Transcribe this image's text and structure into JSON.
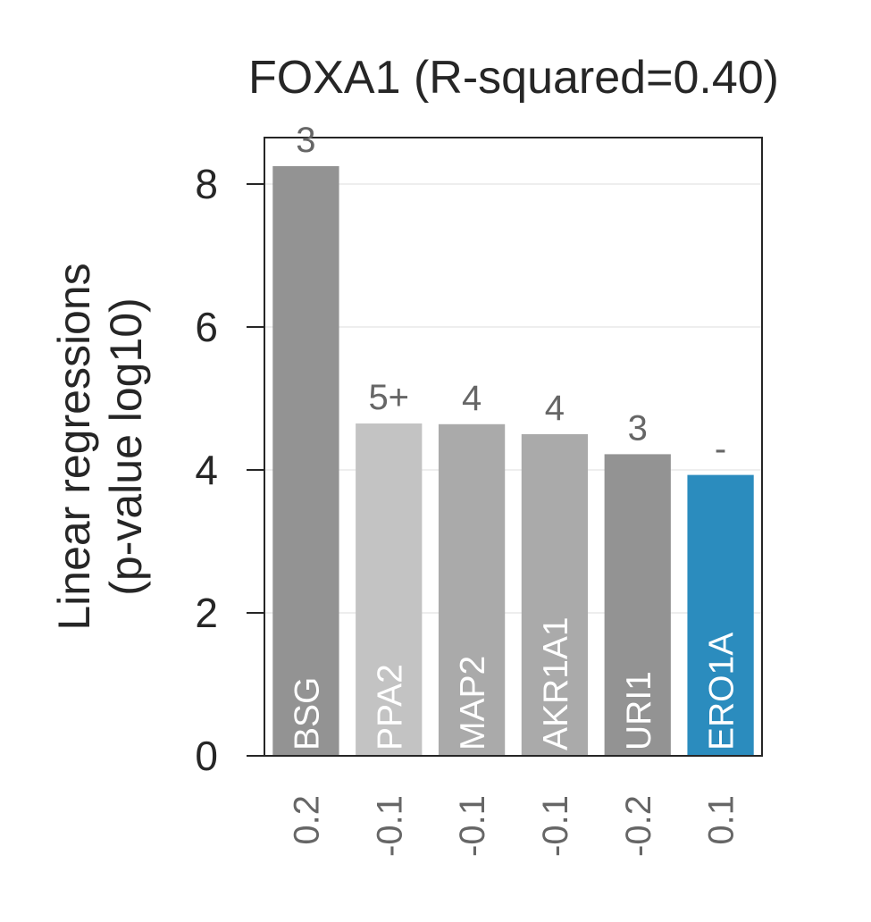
{
  "chart_data": {
    "type": "bar",
    "title": "FOXA1 (R-squared=0.40)",
    "ylabel_line1": "Linear regressions",
    "ylabel_line2": "(p-value log10)",
    "xlabel": "",
    "ylim": [
      0,
      8.65
    ],
    "yticks": [
      0,
      2,
      4,
      6,
      8
    ],
    "grid": true,
    "categories": [
      "BSG",
      "PPA2",
      "MAP2",
      "AKR1A1",
      "URI1",
      "ERO1A"
    ],
    "values": [
      8.25,
      4.65,
      4.64,
      4.5,
      4.22,
      3.93
    ],
    "top_labels": [
      "3",
      "5+",
      "4",
      "4",
      "3",
      "-"
    ],
    "bottom_labels": [
      "0.2",
      "-0.1",
      "-0.1",
      "-0.1",
      "-0.2",
      "0.1"
    ],
    "colors": [
      "#939393",
      "#c3c3c3",
      "#aaaaaa",
      "#aaaaaa",
      "#939393",
      "#2b8cbe"
    ]
  }
}
